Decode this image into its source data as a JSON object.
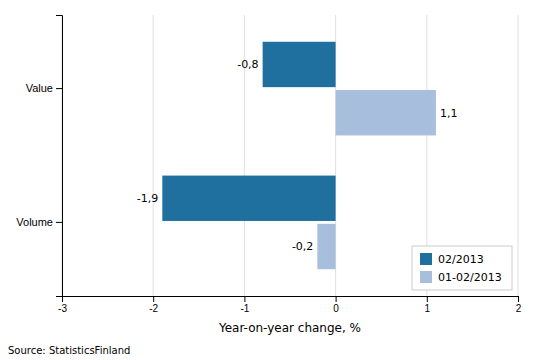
{
  "chart_data": {
    "type": "bar",
    "orientation": "horizontal",
    "categories": [
      "Volume",
      "Value"
    ],
    "series": [
      {
        "name": "02/2013",
        "color": "#1f6f9f",
        "values": [
          -1.9,
          -0.8
        ],
        "value_labels": [
          "-1,9",
          "-0,8"
        ]
      },
      {
        "name": "01-02/2013",
        "color": "#a8bedd",
        "values": [
          -0.2,
          1.1
        ],
        "value_labels": [
          "-0,2",
          "1,1"
        ]
      }
    ],
    "xlabel": "Year-on-year change, %",
    "xlim": [
      -3,
      2
    ],
    "xticks": [
      -3,
      -2,
      -1,
      0,
      1,
      2
    ],
    "grid": true,
    "legend": "lower right",
    "data_labels": true,
    "annotations": [
      "Source: StatisticsFinland"
    ]
  }
}
